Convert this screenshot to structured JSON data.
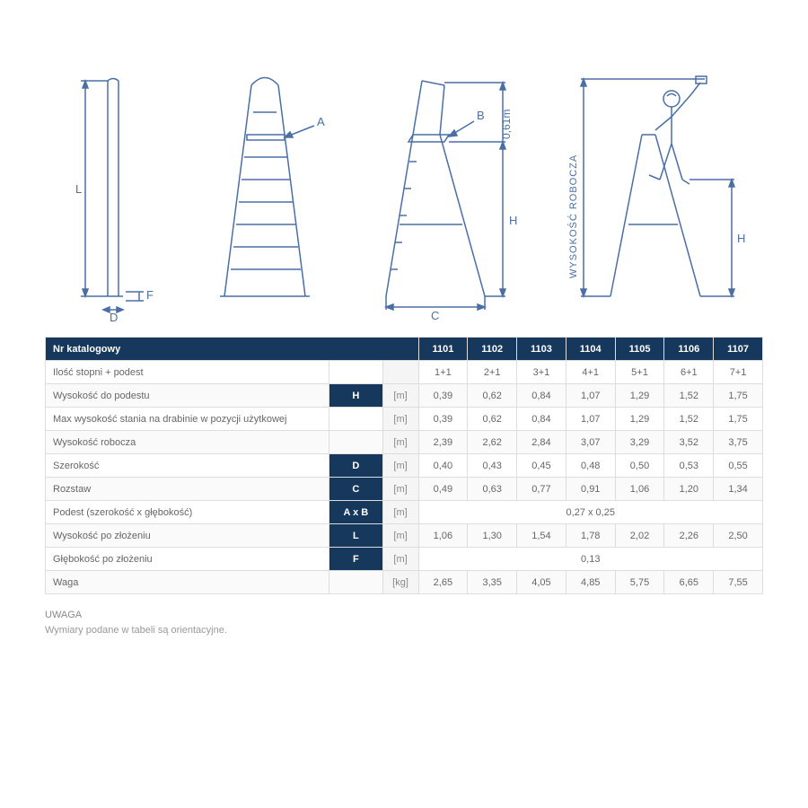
{
  "diagram": {
    "stroke_color": "#4a6fa5",
    "label_A": "A",
    "label_B": "B",
    "label_C": "C",
    "label_D": "D",
    "label_F": "F",
    "label_H": "H",
    "label_L": "L",
    "label_061m": "0,61m",
    "label_wys": "WYSOKOŚĆ  ROBOCZA"
  },
  "table": {
    "header_label": "Nr katalogowy",
    "model_headers": [
      "1101",
      "1102",
      "1103",
      "1104",
      "1105",
      "1106",
      "1107"
    ],
    "rows": [
      {
        "label": "Ilość stopni + podest",
        "symbol": "",
        "unit": "",
        "vals": [
          "1+1",
          "2+1",
          "3+1",
          "4+1",
          "5+1",
          "6+1",
          "7+1"
        ]
      },
      {
        "label": "Wysokość do podestu",
        "symbol": "H",
        "unit": "[m]",
        "vals": [
          "0,39",
          "0,62",
          "0,84",
          "1,07",
          "1,29",
          "1,52",
          "1,75"
        ]
      },
      {
        "label": "Max wysokość stania na drabinie w pozycji użytkowej",
        "symbol": "",
        "unit": "[m]",
        "vals": [
          "0,39",
          "0,62",
          "0,84",
          "1,07",
          "1,29",
          "1,52",
          "1,75"
        ]
      },
      {
        "label": "Wysokość robocza",
        "symbol": "",
        "unit": "[m]",
        "vals": [
          "2,39",
          "2,62",
          "2,84",
          "3,07",
          "3,29",
          "3,52",
          "3,75"
        ]
      },
      {
        "label": "Szerokość",
        "symbol": "D",
        "unit": "[m]",
        "vals": [
          "0,40",
          "0,43",
          "0,45",
          "0,48",
          "0,50",
          "0,53",
          "0,55"
        ]
      },
      {
        "label": "Rozstaw",
        "symbol": "C",
        "unit": "[m]",
        "vals": [
          "0,49",
          "0,63",
          "0,77",
          "0,91",
          "1,06",
          "1,20",
          "1,34"
        ]
      },
      {
        "label": "Podest (szerokość x głębokość)",
        "symbol": "A x B",
        "unit": "[m]",
        "span": true,
        "spanval": "0,27 x 0,25"
      },
      {
        "label": "Wysokość po złożeniu",
        "symbol": "L",
        "unit": "[m]",
        "vals": [
          "1,06",
          "1,30",
          "1,54",
          "1,78",
          "2,02",
          "2,26",
          "2,50"
        ]
      },
      {
        "label": "Głębokość po złożeniu",
        "symbol": "F",
        "unit": "[m]",
        "span": true,
        "spanval": "0,13"
      },
      {
        "label": "Waga",
        "symbol": "",
        "unit": "[kg]",
        "vals": [
          "2,65",
          "3,35",
          "4,05",
          "4,85",
          "5,75",
          "6,65",
          "7,55"
        ]
      }
    ]
  },
  "note": {
    "title": "UWAGA",
    "text": "Wymiary podane w tabeli są orientacyjne."
  },
  "colors": {
    "header_bg": "#16385d",
    "border": "#dddddd",
    "text": "#666666"
  }
}
